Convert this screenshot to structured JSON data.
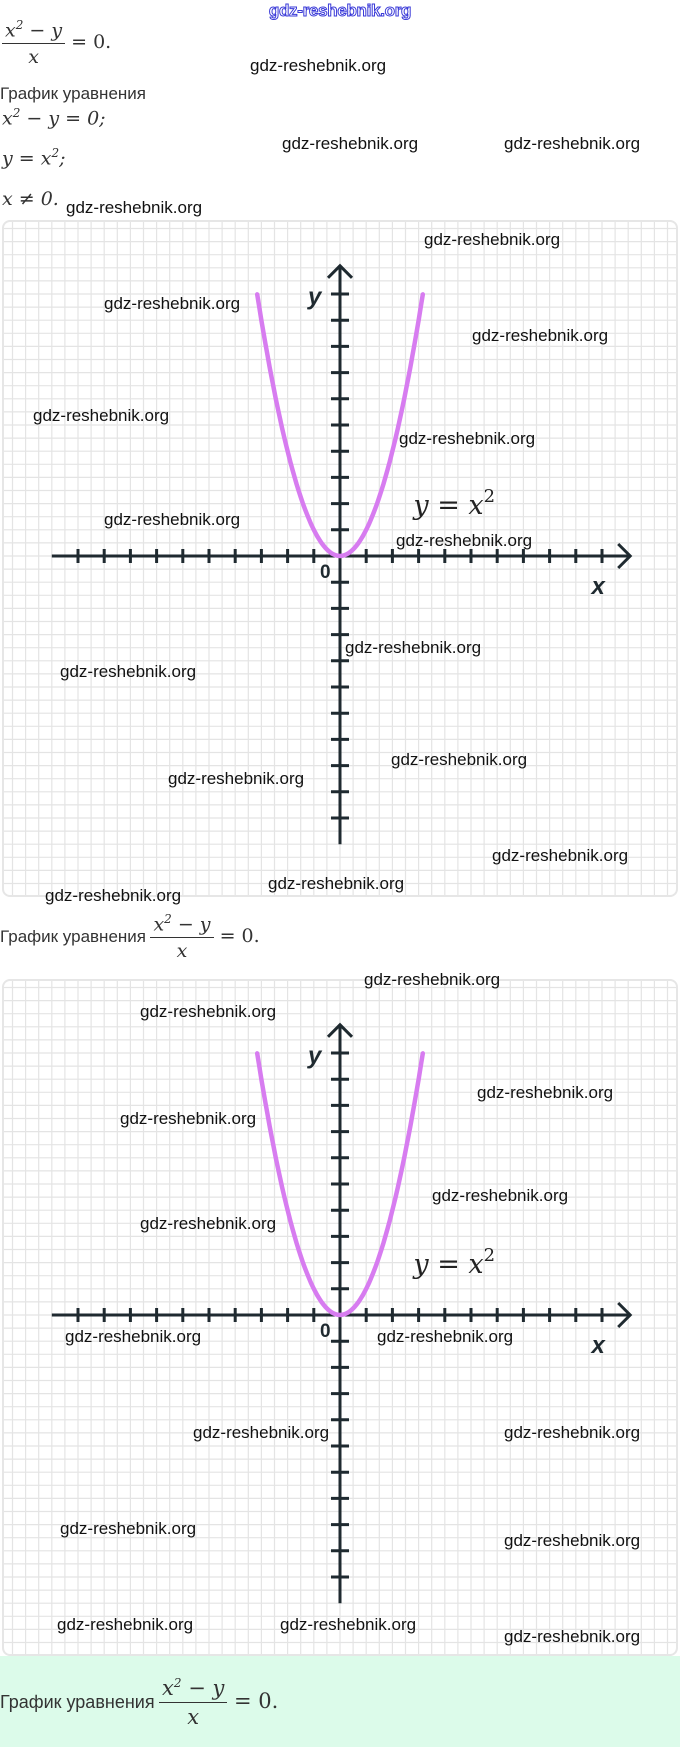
{
  "watermark": "gdz-reshebnik.org",
  "logo": "gdz-reshebnik.org",
  "solution": {
    "equation": {
      "num_x": "x",
      "num_exp": "2",
      "num_rest": " − y",
      "den": "x",
      "rhs": " = 0."
    },
    "caption_cut": "График уравнения",
    "step1": {
      "lhs": "x",
      "exp": "2",
      "rest": " − y = 0;"
    },
    "step2": {
      "lhs": "y = x",
      "exp": "2",
      "rest": ";"
    },
    "step3": "x ≠ 0."
  },
  "caption": {
    "label": "График уравнения",
    "num_x": "x",
    "num_exp": "2",
    "num_rest": " − y",
    "den": "x",
    "rhs": " = 0."
  },
  "graph": {
    "x_label": "x",
    "y_label": "y",
    "origin_label": "0",
    "curve_label": "y = x",
    "curve_label_exp": "2"
  },
  "colors": {
    "curve": "#d77cf0",
    "axis": "#1f2a30",
    "grid": "#e4e4e4",
    "green_bg": "#dcfbea",
    "logo": "#3a3ad8"
  },
  "chart_data": [
    {
      "type": "line",
      "function": "y = x^2",
      "domain": [
        -3.16,
        3.16
      ],
      "xlim": [
        -11,
        11
      ],
      "ylim": [
        -11,
        11
      ],
      "x_ticks_step": 1,
      "y_ticks_step": 1,
      "grid": true,
      "xlabel": "x",
      "ylabel": "y",
      "annotation": "y = x^2"
    },
    {
      "type": "line",
      "function": "y = x^2",
      "domain": [
        -3.16,
        3.16
      ],
      "xlim": [
        -11,
        11
      ],
      "ylim": [
        -11,
        11
      ],
      "x_ticks_step": 1,
      "y_ticks_step": 1,
      "grid": true,
      "xlabel": "x",
      "ylabel": "y",
      "annotation": "y = x^2"
    }
  ]
}
